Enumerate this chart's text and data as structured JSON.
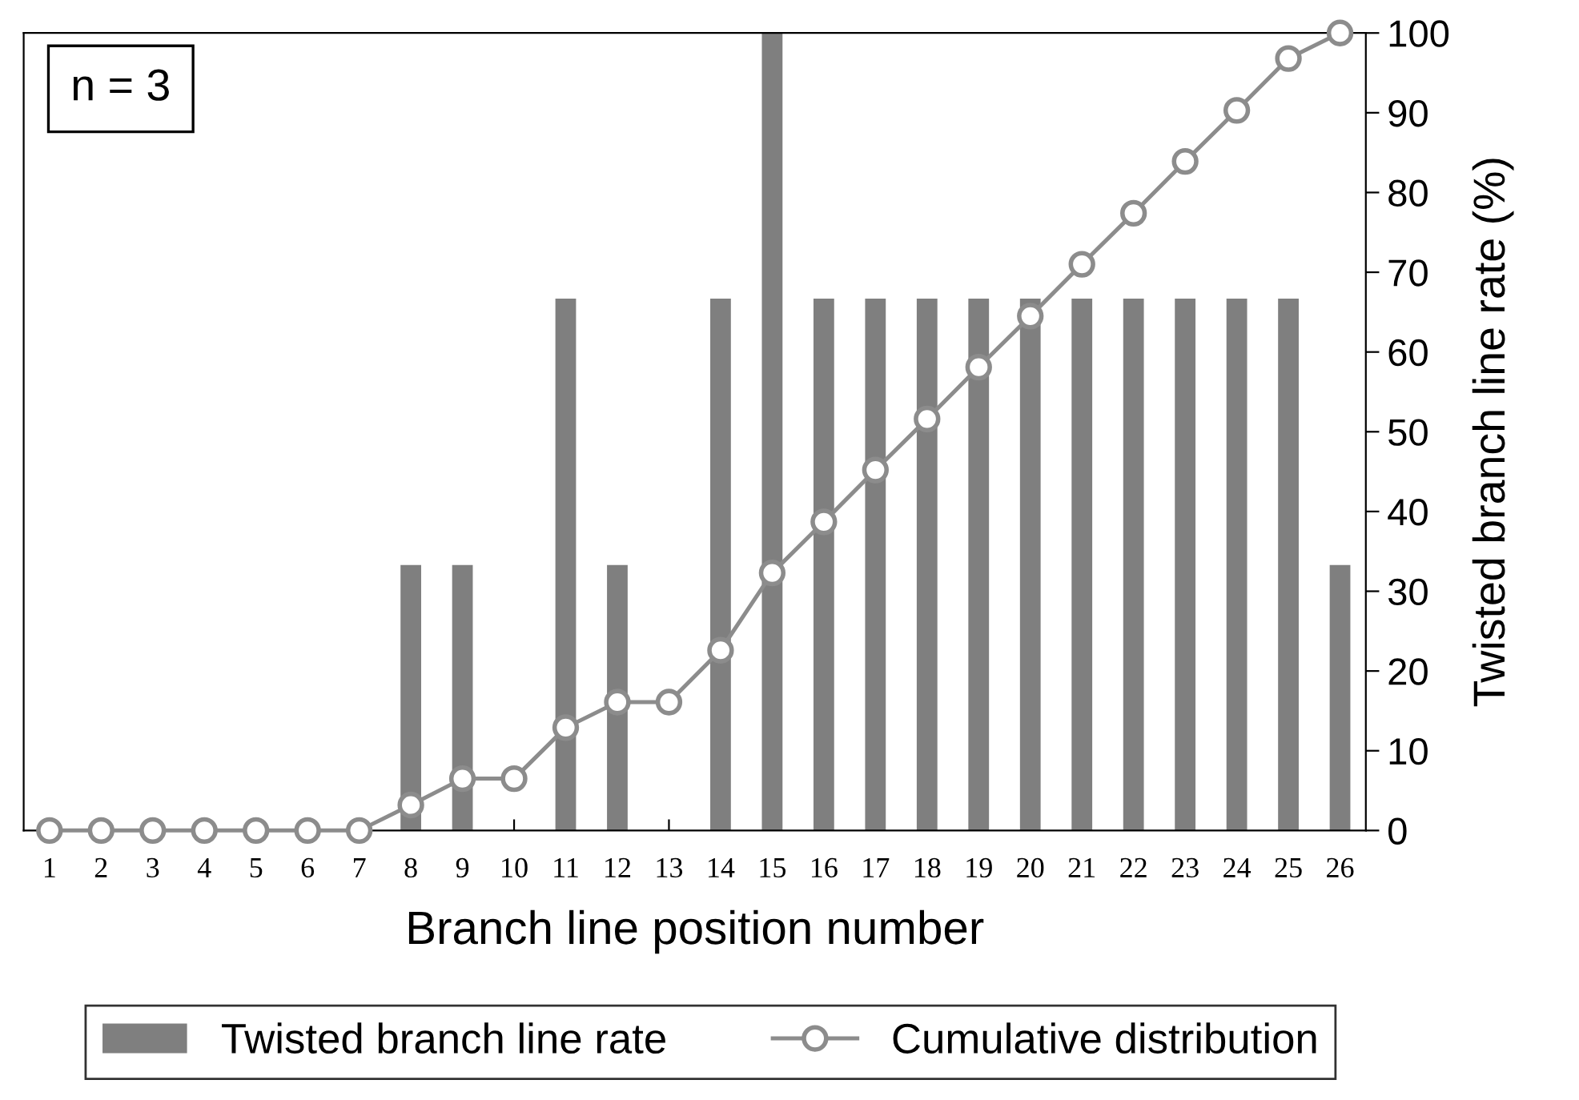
{
  "chart_data": {
    "type": "bar",
    "xlabel": "Branch line position number",
    "ylabel": "Twisted branch line rate (%)",
    "categories": [
      "1",
      "2",
      "3",
      "4",
      "5",
      "6",
      "7",
      "8",
      "9",
      "10",
      "11",
      "12",
      "13",
      "14",
      "15",
      "16",
      "17",
      "18",
      "19",
      "20",
      "21",
      "22",
      "23",
      "24",
      "25",
      "26"
    ],
    "series": [
      {
        "name": "Twisted branch line rate",
        "color": "#7f7f7f",
        "values": [
          0,
          0,
          0,
          0,
          0,
          0,
          0,
          33.3,
          33.3,
          0,
          66.7,
          33.3,
          0,
          66.7,
          100,
          66.7,
          66.7,
          66.7,
          66.7,
          66.7,
          66.7,
          66.7,
          66.7,
          66.7,
          66.7,
          33.3
        ]
      },
      {
        "name": "Cumulative distribution",
        "type": "line",
        "color": "#8c8c8c",
        "marker": "circle",
        "values": [
          0,
          0,
          0,
          0,
          0,
          0,
          0,
          3.2,
          6.5,
          6.5,
          12.9,
          16.1,
          16.1,
          22.6,
          32.3,
          38.7,
          45.2,
          51.6,
          58.1,
          64.5,
          71.0,
          77.4,
          83.9,
          90.3,
          96.8,
          100
        ]
      }
    ],
    "ylim": [
      0,
      100
    ],
    "yticks": [
      0,
      10,
      20,
      30,
      40,
      50,
      60,
      70,
      80,
      90,
      100
    ],
    "annotations": [
      "n = 3"
    ],
    "legend": "bottom",
    "grid": false
  }
}
